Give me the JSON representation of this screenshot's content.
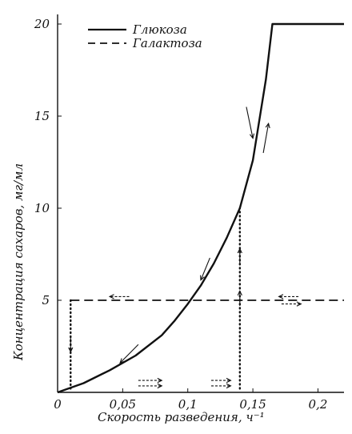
{
  "chart_data": {
    "type": "line",
    "xlabel": "Скорость разведения, ч⁻¹",
    "ylabel": "Концентрация сахаров, мг/мл",
    "xlim": [
      0,
      0.22
    ],
    "ylim": [
      0,
      20
    ],
    "x_ticks": [
      {
        "value": 0,
        "label": "0"
      },
      {
        "value": 0.05,
        "label": "0,05"
      },
      {
        "value": 0.1,
        "label": "0,1"
      },
      {
        "value": 0.15,
        "label": "0,15"
      },
      {
        "value": 0.2,
        "label": "0,2"
      }
    ],
    "y_ticks": [
      {
        "value": 5,
        "label": "5"
      },
      {
        "value": 10,
        "label": "10"
      },
      {
        "value": 15,
        "label": "15"
      },
      {
        "value": 20,
        "label": "20"
      }
    ],
    "legend_position": "top-left",
    "series": [
      {
        "name": "Глюкоза",
        "style": "solid",
        "color": "#111111",
        "points": [
          [
            0.0,
            0.0
          ],
          [
            0.02,
            0.5
          ],
          [
            0.04,
            1.2
          ],
          [
            0.06,
            2.0
          ],
          [
            0.08,
            3.1
          ],
          [
            0.09,
            3.9
          ],
          [
            0.1,
            4.8
          ],
          [
            0.11,
            5.8
          ],
          [
            0.12,
            7.0
          ],
          [
            0.13,
            8.4
          ],
          [
            0.14,
            10.0
          ],
          [
            0.15,
            12.6
          ],
          [
            0.16,
            17.0
          ],
          [
            0.165,
            20.0
          ],
          [
            0.22,
            20.0
          ]
        ]
      },
      {
        "name": "Галактоза",
        "style": "dashed",
        "color": "#111111",
        "points": [
          [
            0.01,
            5.0
          ],
          [
            0.22,
            5.0
          ]
        ]
      }
    ],
    "transitions": [
      {
        "x": 0.01,
        "y_from": 5.0,
        "y_to": 0.2,
        "style": "dotted"
      },
      {
        "x": 0.14,
        "y_from": 0.2,
        "y_to": 10.0,
        "style": "dotted"
      }
    ]
  }
}
